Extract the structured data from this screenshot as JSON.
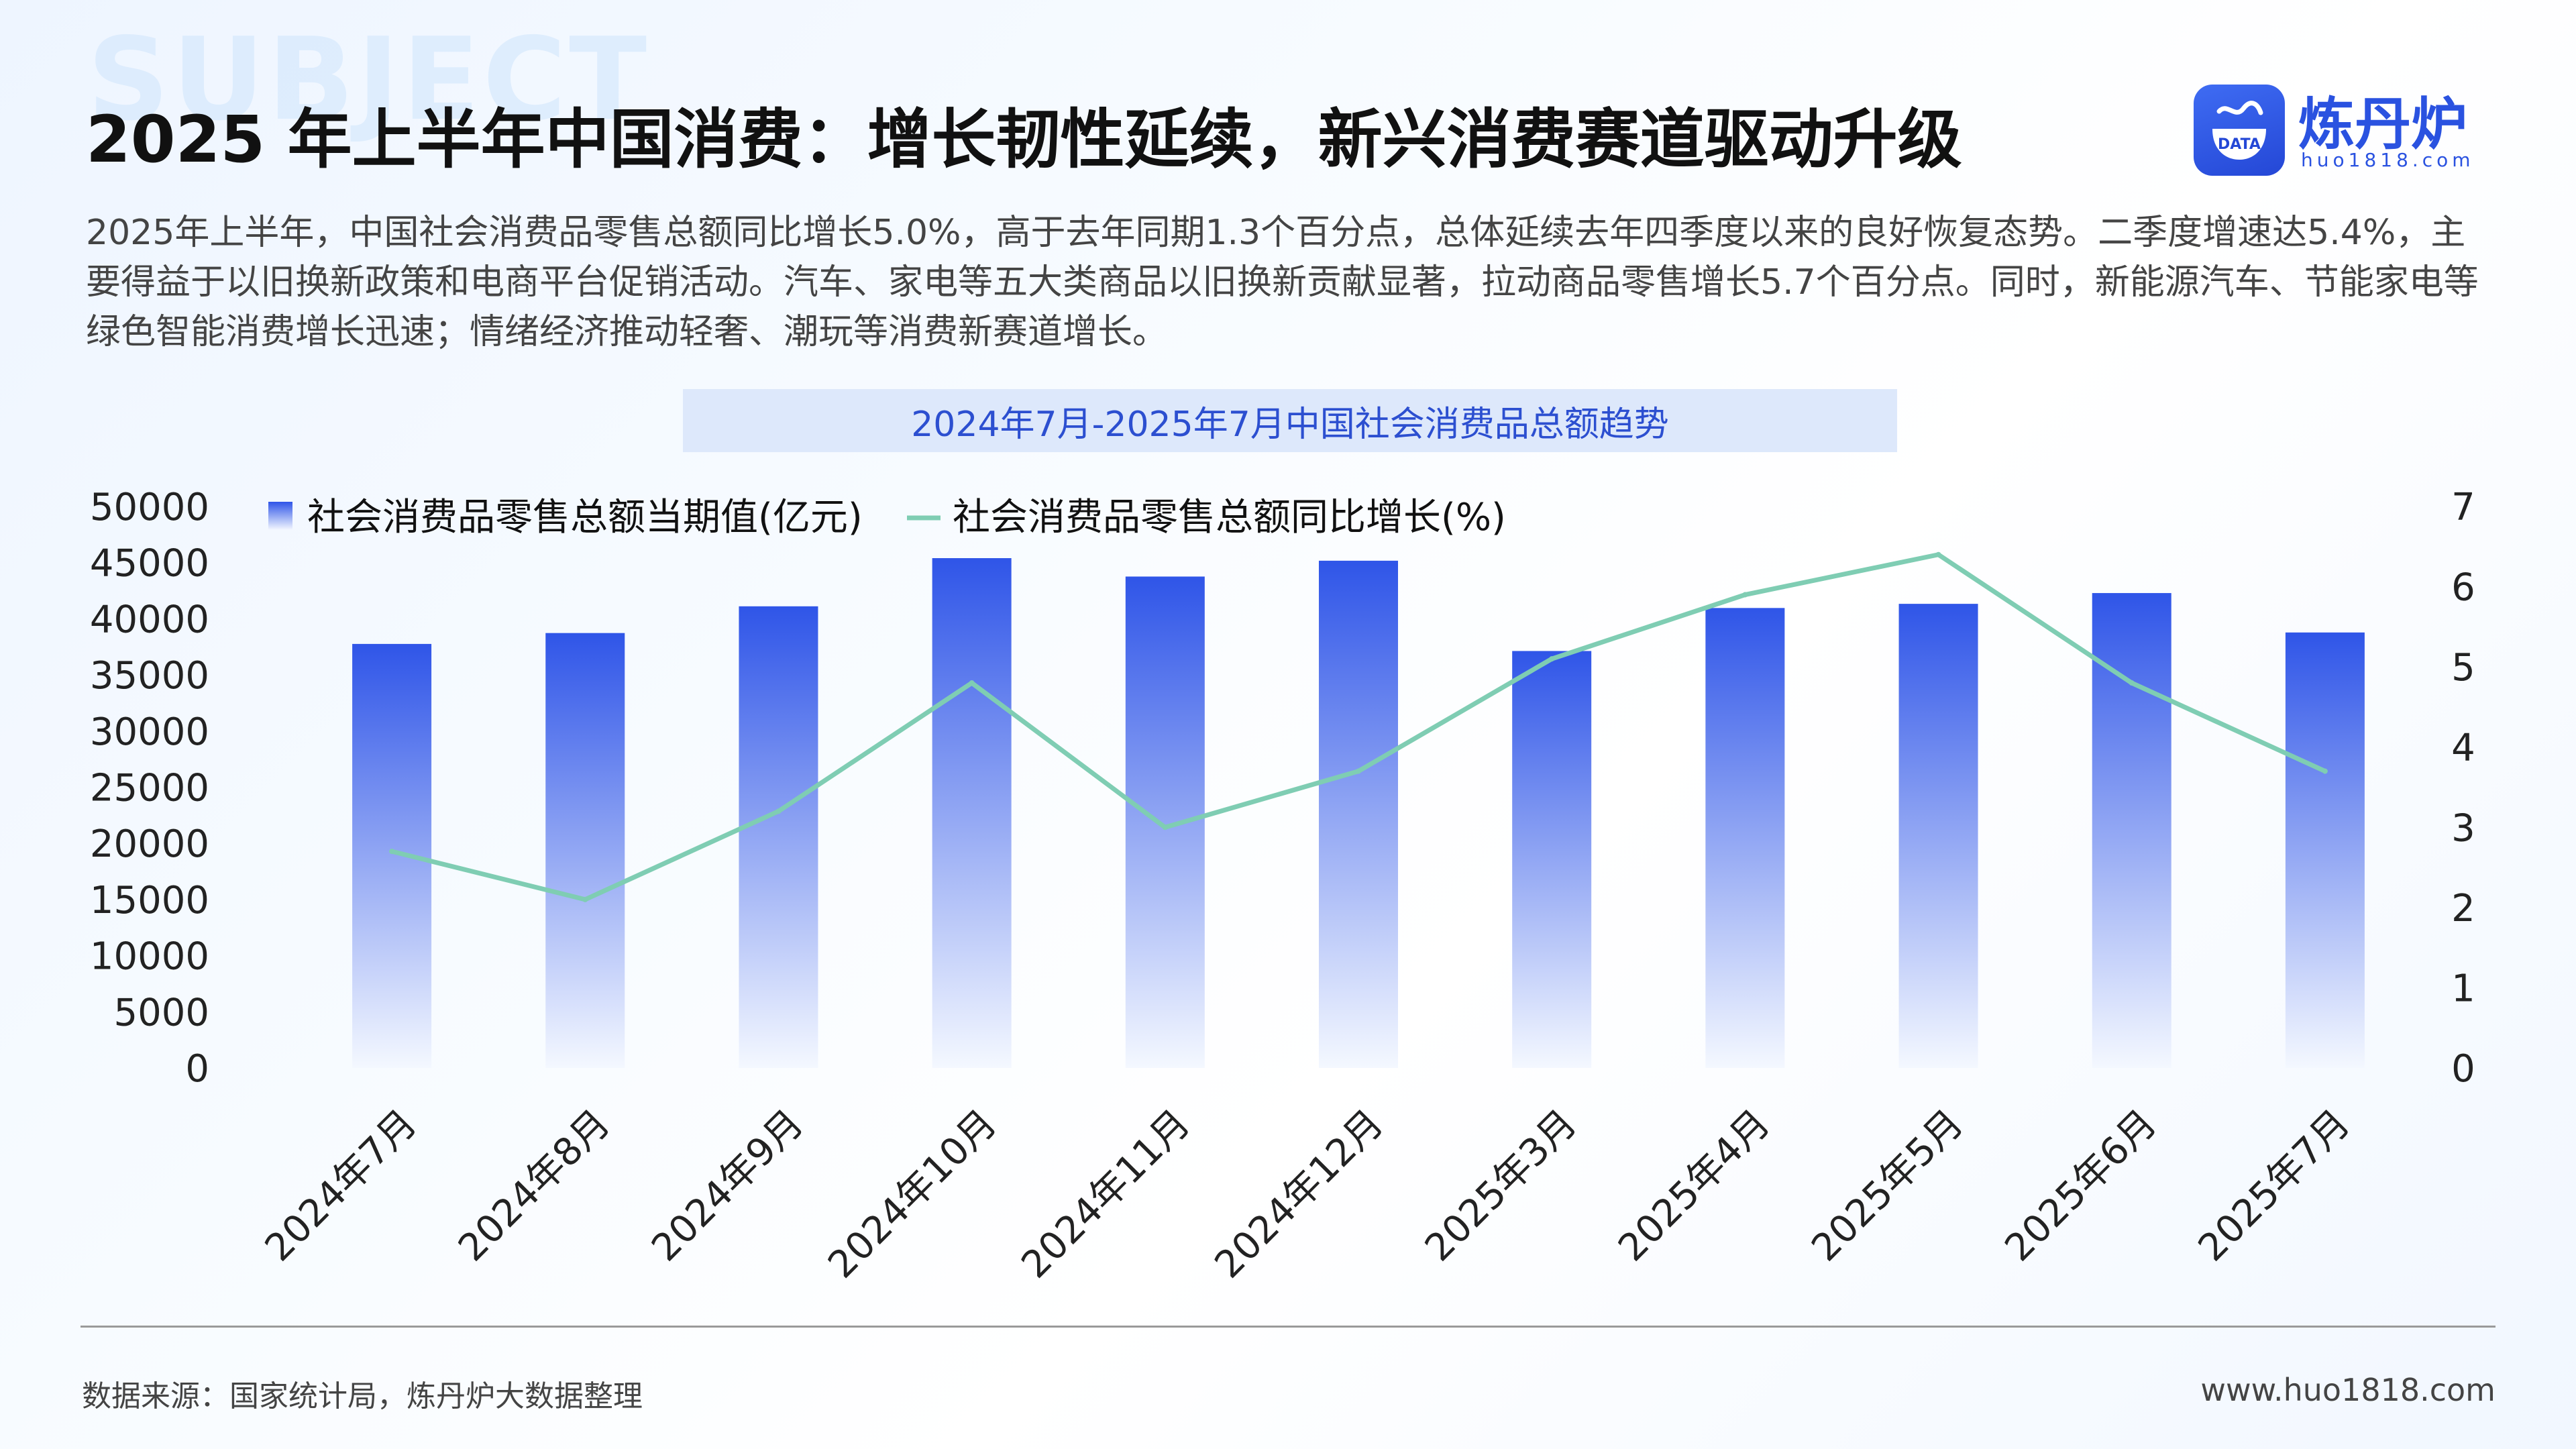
{
  "header": {
    "bg_word": "SUBJECT",
    "title": "2025 年上半年中国消费：增长韧性延续，新兴消费赛道驱动升级",
    "summary": "2025年上半年，中国社会消费品零售总额同比增长5.0%，高于去年同期1.3个百分点，总体延续去年四季度以来的良好恢复态势。二季度增速达5.4%，主要得益于以旧换新政策和电商平台促销活动。汽车、家电等五大类商品以旧换新贡献显著，拉动商品零售增长5.7个百分点。同时，新能源汽车、节能家电等绿色智能消费增长迅速；情绪经济推动轻奢、潮玩等消费新赛道增长。"
  },
  "logo": {
    "name": "炼丹炉",
    "badge_text": "DATA",
    "url": "huo1818.com"
  },
  "footer": {
    "source": "数据来源：国家统计局，炼丹炉大数据整理",
    "site": "www.huo1818.com"
  },
  "colors": {
    "bar_top": "#2f55e8",
    "bar_bottom": "#f4f8ff",
    "line": "#7fcdb3",
    "title_bar_bg": "#dde8fb",
    "title_bar_text": "#2c4fd0"
  },
  "chart_data": {
    "type": "bar",
    "title": "2024年7月-2025年7月中国社会消费品总额趋势",
    "categories": [
      "2024年7月",
      "2024年8月",
      "2024年9月",
      "2024年10月",
      "2024年11月",
      "2024年12月",
      "2025年3月",
      "2025年4月",
      "2025年5月",
      "2025年6月",
      "2025年7月"
    ],
    "series": [
      {
        "name": "社会消费品零售总额当期值(亿元)",
        "type": "bar",
        "axis": "left",
        "values": [
          37760,
          38730,
          41110,
          45400,
          43760,
          45170,
          37130,
          40960,
          41330,
          42290,
          38780
        ]
      },
      {
        "name": "社会消费品零售总额同比增长(%)",
        "type": "line",
        "axis": "right",
        "values": [
          2.7,
          2.1,
          3.2,
          4.8,
          3.0,
          3.7,
          5.1,
          5.9,
          6.4,
          4.8,
          3.7
        ]
      }
    ],
    "y_left": {
      "min": 0,
      "max": 50000,
      "ticks": [
        0,
        5000,
        10000,
        15000,
        20000,
        25000,
        30000,
        35000,
        40000,
        45000,
        50000
      ]
    },
    "y_right": {
      "min": 0,
      "max": 7,
      "ticks": [
        0,
        1,
        2,
        3,
        4,
        5,
        6,
        7
      ]
    },
    "legend_position": "top-left",
    "grid": false
  }
}
